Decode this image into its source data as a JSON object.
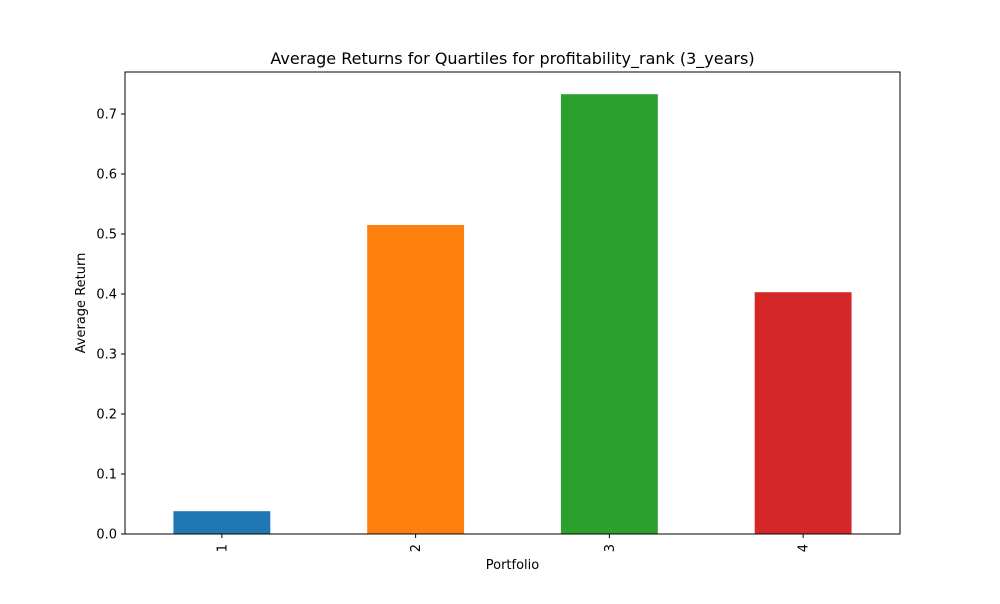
{
  "chart_data": {
    "type": "bar",
    "title": "Average Returns for Quartiles for profitability_rank (3_years)",
    "xlabel": "Portfolio",
    "ylabel": "Average Return",
    "categories": [
      "1",
      "2",
      "3",
      "4"
    ],
    "values": [
      0.038,
      0.515,
      0.733,
      0.403
    ],
    "colors": [
      "#1f77b4",
      "#ff7f0e",
      "#2ca02c",
      "#d62728"
    ],
    "ylim": [
      0,
      0.77
    ],
    "yticks": [
      0.0,
      0.1,
      0.2,
      0.3,
      0.4,
      0.5,
      0.6,
      0.7
    ],
    "ytick_labels": [
      "0.0",
      "0.1",
      "0.2",
      "0.3",
      "0.4",
      "0.5",
      "0.6",
      "0.7"
    ],
    "xtick_rotation": "vertical",
    "grid": false,
    "legend": "none"
  }
}
